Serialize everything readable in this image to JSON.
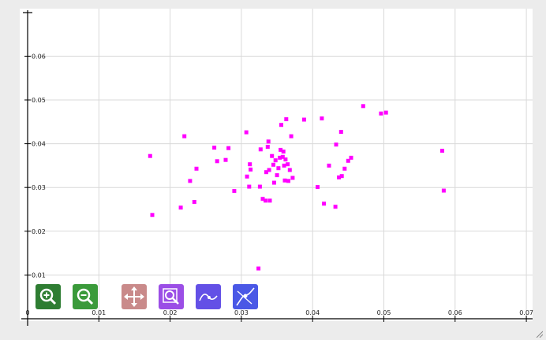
{
  "colors": {
    "background": "#ffffff",
    "grid": "#d9d9d9",
    "axis": "#000000",
    "points": "#ff00ff"
  },
  "toolbar": [
    {
      "name": "zoom-in",
      "icon": "zoom-in-icon",
      "color": "#2e7d32"
    },
    {
      "name": "zoom-out",
      "icon": "zoom-out-icon",
      "color": "#3a9a3a"
    },
    {
      "name": "pan",
      "icon": "pan-arrows-icon",
      "color": "#c98a8a"
    },
    {
      "name": "box-zoom",
      "icon": "box-zoom-icon",
      "color": "#9b4ee6"
    },
    {
      "name": "curve-fit",
      "icon": "curve-icon",
      "color": "#6350e6"
    },
    {
      "name": "crosshair",
      "icon": "crosshair-icon",
      "color": "#4a58e6"
    }
  ],
  "chart_data": {
    "type": "scatter",
    "title": "",
    "xlabel": "",
    "ylabel": "",
    "xlim": [
      0,
      0.07
    ],
    "ylim": [
      0,
      0.07
    ],
    "grid": true,
    "x_ticks": [
      "0",
      "0.01",
      "0.02",
      "0.03",
      "0.04",
      "0.05",
      "0.06",
      "0.07"
    ],
    "y_ticks": [
      "0.01",
      "0.02",
      "0.03",
      "0.04",
      "0.05",
      "0.06"
    ],
    "points": [
      [
        0.0172,
        0.0372
      ],
      [
        0.0175,
        0.0237
      ],
      [
        0.0215,
        0.0254
      ],
      [
        0.022,
        0.0417
      ],
      [
        0.0228,
        0.0315
      ],
      [
        0.0234,
        0.0267
      ],
      [
        0.0237,
        0.0343
      ],
      [
        0.0262,
        0.0391
      ],
      [
        0.0266,
        0.036
      ],
      [
        0.0278,
        0.0363
      ],
      [
        0.0282,
        0.039
      ],
      [
        0.029,
        0.0292
      ],
      [
        0.0307,
        0.0426
      ],
      [
        0.0308,
        0.0325
      ],
      [
        0.0311,
        0.0302
      ],
      [
        0.0312,
        0.0353
      ],
      [
        0.0313,
        0.0341
      ],
      [
        0.0324,
        0.0115
      ],
      [
        0.0326,
        0.0302
      ],
      [
        0.0327,
        0.0387
      ],
      [
        0.033,
        0.0274
      ],
      [
        0.0334,
        0.027
      ],
      [
        0.0335,
        0.0335
      ],
      [
        0.0337,
        0.0393
      ],
      [
        0.0338,
        0.0405
      ],
      [
        0.0339,
        0.034
      ],
      [
        0.034,
        0.027
      ],
      [
        0.0343,
        0.0372
      ],
      [
        0.0345,
        0.0352
      ],
      [
        0.0346,
        0.0311
      ],
      [
        0.0348,
        0.0362
      ],
      [
        0.035,
        0.0328
      ],
      [
        0.0352,
        0.0344
      ],
      [
        0.0354,
        0.0368
      ],
      [
        0.0355,
        0.0386
      ],
      [
        0.0356,
        0.0443
      ],
      [
        0.0358,
        0.037
      ],
      [
        0.0359,
        0.0382
      ],
      [
        0.036,
        0.035
      ],
      [
        0.0361,
        0.0316
      ],
      [
        0.0362,
        0.0364
      ],
      [
        0.0363,
        0.0456
      ],
      [
        0.0365,
        0.0353
      ],
      [
        0.0366,
        0.0315
      ],
      [
        0.0368,
        0.034
      ],
      [
        0.037,
        0.0417
      ],
      [
        0.0372,
        0.0322
      ],
      [
        0.0388,
        0.0455
      ],
      [
        0.0407,
        0.0301
      ],
      [
        0.0413,
        0.0458
      ],
      [
        0.0416,
        0.0263
      ],
      [
        0.0423,
        0.035
      ],
      [
        0.0432,
        0.0256
      ],
      [
        0.0433,
        0.0398
      ],
      [
        0.0437,
        0.0323
      ],
      [
        0.044,
        0.0427
      ],
      [
        0.0441,
        0.0326
      ],
      [
        0.0445,
        0.0343
      ],
      [
        0.045,
        0.0361
      ],
      [
        0.0454,
        0.0368
      ],
      [
        0.0471,
        0.0486
      ],
      [
        0.0496,
        0.0469
      ],
      [
        0.0503,
        0.0471
      ],
      [
        0.0582,
        0.0384
      ],
      [
        0.0584,
        0.0293
      ]
    ]
  }
}
